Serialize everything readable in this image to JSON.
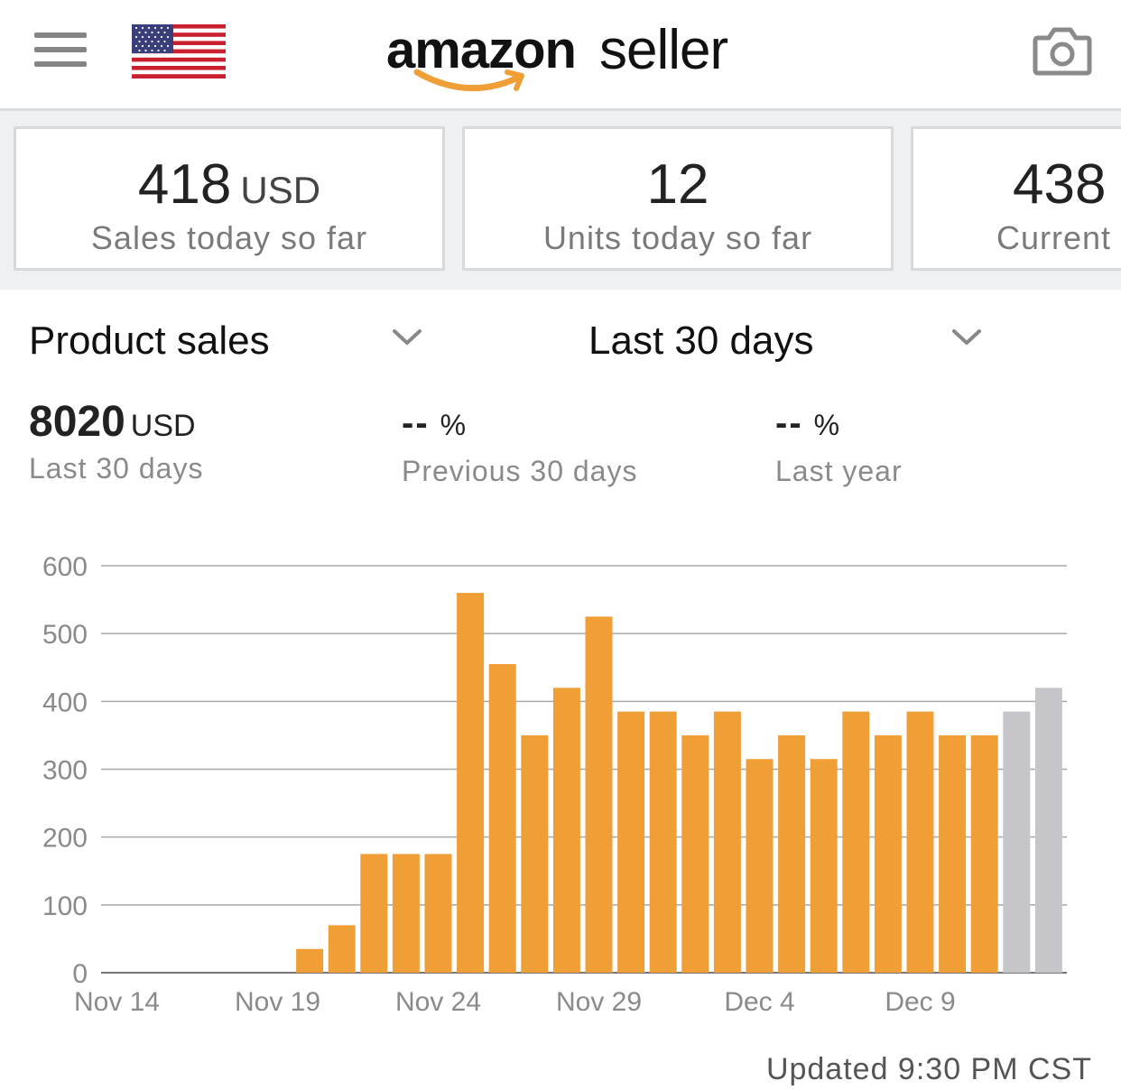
{
  "header": {
    "menu_icon": "hamburger-menu-icon",
    "marketplace_flag": "us-flag-icon",
    "brand_primary": "amazon",
    "brand_secondary": "seller",
    "camera_icon": "camera-icon"
  },
  "metrics": [
    {
      "value": "418",
      "unit": "USD",
      "label": "Sales today so far"
    },
    {
      "value": "12",
      "unit": "",
      "label": "Units today so far"
    },
    {
      "value": "438",
      "unit": "",
      "label": "Current"
    }
  ],
  "selectors": {
    "metric": {
      "label": "Product sales"
    },
    "period": {
      "label": "Last 30 days"
    }
  },
  "summary": {
    "total": {
      "value": "8020",
      "unit": "USD",
      "label": "Last 30 days"
    },
    "previous": {
      "value": "--",
      "unit": "%",
      "label": "Previous 30 days"
    },
    "last_year": {
      "value": "--",
      "unit": "%",
      "label": "Last year"
    }
  },
  "chart_data": {
    "type": "bar",
    "title": "",
    "xlabel": "",
    "ylabel": "",
    "ylim": [
      0,
      600
    ],
    "yticks": [
      "0",
      "100",
      "200",
      "300",
      "400",
      "500",
      "600"
    ],
    "x_tick_labels": [
      "Nov 14",
      "Nov 19",
      "Nov 24",
      "Nov 29",
      "Dec 4",
      "Dec 9"
    ],
    "categories": [
      "Nov 14",
      "Nov 15",
      "Nov 16",
      "Nov 17",
      "Nov 18",
      "Nov 19",
      "Nov 20",
      "Nov 21",
      "Nov 22",
      "Nov 23",
      "Nov 24",
      "Nov 25",
      "Nov 26",
      "Nov 27",
      "Nov 28",
      "Nov 29",
      "Nov 30",
      "Dec 1",
      "Dec 2",
      "Dec 3",
      "Dec 4",
      "Dec 5",
      "Dec 6",
      "Dec 7",
      "Dec 8",
      "Dec 9",
      "Dec 10",
      "Dec 11",
      "Dec 12",
      "Dec 13"
    ],
    "values": [
      0,
      0,
      0,
      0,
      0,
      0,
      35,
      70,
      175,
      175,
      175,
      560,
      455,
      350,
      420,
      525,
      385,
      385,
      350,
      385,
      315,
      350,
      315,
      385,
      350,
      385,
      350,
      350,
      385,
      420
    ],
    "bar_colors": {
      "complete": "#f09e36",
      "in_progress": "#c6c6ca"
    },
    "in_progress_from_index": 28,
    "grid": true,
    "legend": "none"
  },
  "footer": {
    "updated": "Updated 9:30 PM CST"
  }
}
